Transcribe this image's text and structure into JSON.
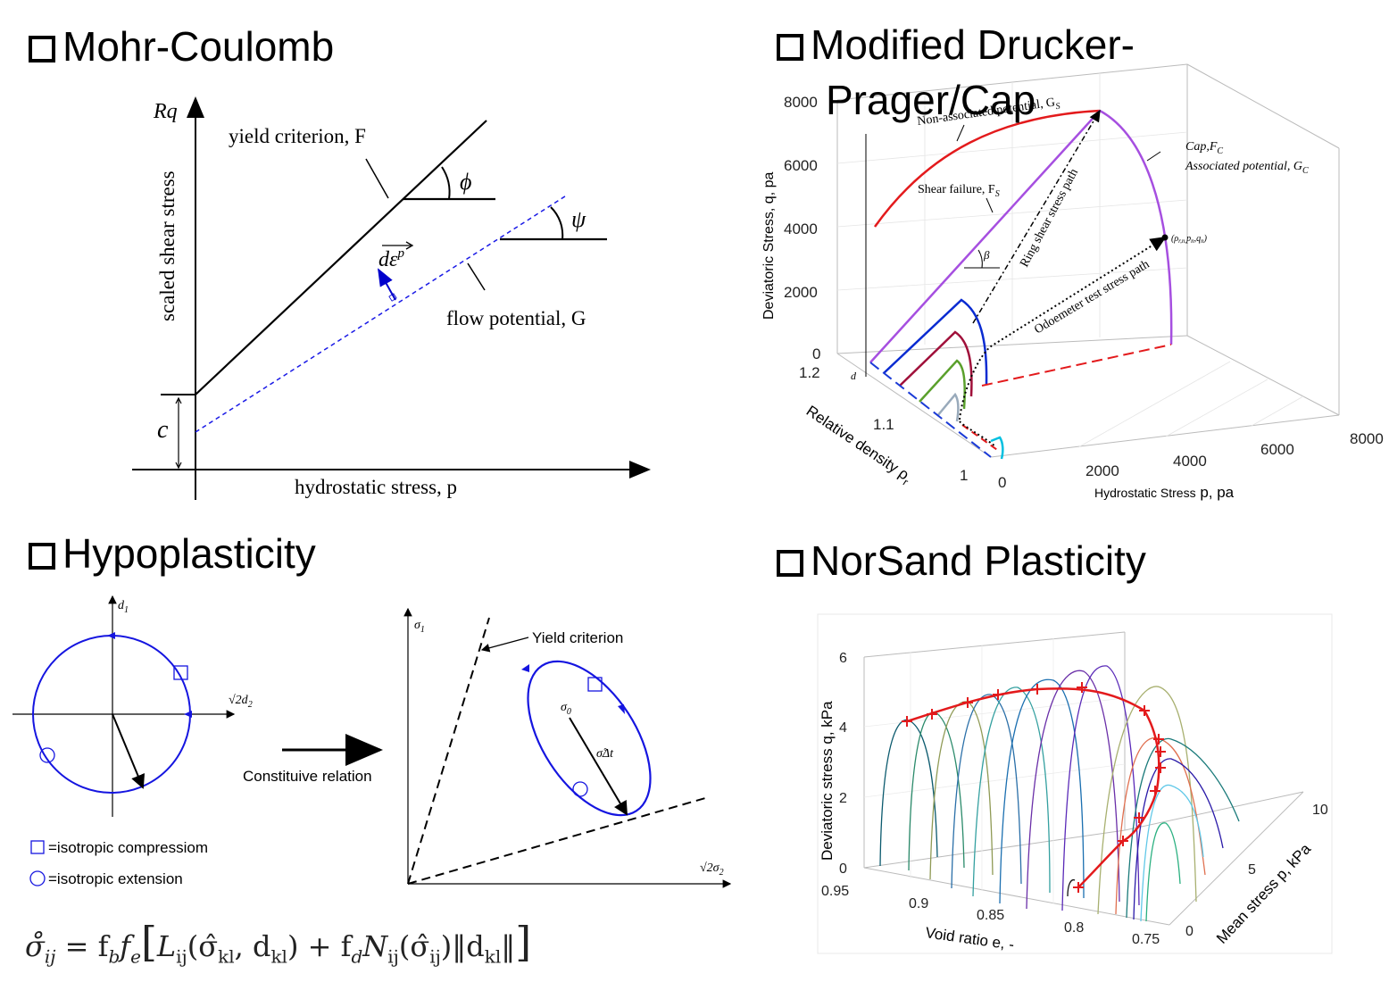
{
  "panels": {
    "mohr": {
      "heading": "Mohr-Coulomb",
      "y_axis_symbol": "Rq",
      "y_axis_label": "scaled shear stress",
      "x_axis_label": "hydrostatic stress, p",
      "yield_label": "yield criterion, F",
      "flow_label": "flow potential, G",
      "phi": "ϕ",
      "psi": "ψ",
      "cohesion": "c",
      "strain_increment": "dε",
      "strain_sup": "p"
    },
    "dp": {
      "heading_line1": "Modified  Drucker-",
      "heading_line2": "Prager/Cap",
      "z_axis_label": "Deviatoric Stress,  q, pa",
      "x_axis_label_a": "Hydrostatic Stress",
      "x_axis_label_b": " p, pa",
      "y_axis_label": "Relative density ρ",
      "y_axis_sub": "r",
      "z_ticks": [
        "8000",
        "6000",
        "4000",
        "2000",
        "0"
      ],
      "x_ticks": [
        "0",
        "2000",
        "4000",
        "6000",
        "8000"
      ],
      "y_ticks": [
        "1.2",
        "1.1",
        "1"
      ],
      "label_nonassoc": "Non-associated potential, G",
      "label_nonassoc_sub": "S",
      "label_shear": "Shear failure, F",
      "label_shear_sub": "S",
      "label_cap": "Cap,F",
      "label_cap_sub": "C",
      "label_cap_assoc": "Associated potential, G",
      "label_cap_assoc_sub": "C",
      "label_ring": "Ring shear stress path",
      "label_odo": "Odoemeter test stress path",
      "label_point": "(ρ",
      "label_point_rest": "r,n,",
      "label_point_p": "p",
      "label_point_n1": "n",
      "label_point_q": ",q",
      "label_point_n2": "n",
      "label_point_end": ")",
      "beta": "β",
      "d": "d"
    },
    "hypo": {
      "heading": "Hypoplasticity",
      "d1": "d",
      "d1_sub": "1",
      "sqrt2d2": "√2d",
      "sqrt2d2_sub": "2",
      "sigma1": "σ",
      "sigma1_sub": "1",
      "sqrt2s2": "√2σ",
      "sqrt2s2_sub": "2",
      "sigma0": "σ",
      "sigma0_sub": "0",
      "sigmadt": "σ̊Δt",
      "yield_label": "Yield criterion",
      "arrow_label": "Constituive relation",
      "legend_square": "=isotropic compressiom",
      "legend_circle": "=isotropic extension",
      "equation": "σ̊ᵢⱼ = f_b f_e [ L_ij(σ̂_kl, d_kl) + f_d N_ij(σ̂_ij) ‖d_kl‖ ]",
      "eq_lhs": "σ̊",
      "eq_lhs_sub": "ij",
      "eq_eq": " = f",
      "eq_fb": "b",
      "eq_f": "f",
      "eq_fe": "e",
      "eq_L": "L",
      "eq_L_sub": "ij",
      "eq_Largs": "(σ̂",
      "eq_kl": "kl",
      "eq_d": ", d",
      "eq_kl2": "kl",
      "eq_plus": ") + f",
      "eq_fd": "d",
      "eq_N": "N",
      "eq_N_sub": "ij",
      "eq_Nargs": "(σ̂",
      "eq_ij": "ij",
      "eq_norm": ")‖d",
      "eq_kl3": "kl",
      "eq_end": "‖"
    },
    "norsand": {
      "heading": "NorSand Plasticity",
      "z_axis_label": "Deviatoric stress q, kPa",
      "x_axis_label": "Void ratio e, -",
      "y_axis_label": "Mean stress p, kPa",
      "z_ticks": [
        "6",
        "4",
        "2",
        "0"
      ],
      "x_ticks": [
        "0.95",
        "0.9",
        "0.85",
        "0.8",
        "0.75"
      ],
      "y_ticks": [
        "0",
        "5",
        "10"
      ]
    }
  },
  "colors": {
    "red": "#e31a1c",
    "purple": "#a64fe0",
    "blue": "#0a2bd1",
    "hypo_blue": "#1515e0",
    "dashed_blue": "#1a1ae6"
  }
}
